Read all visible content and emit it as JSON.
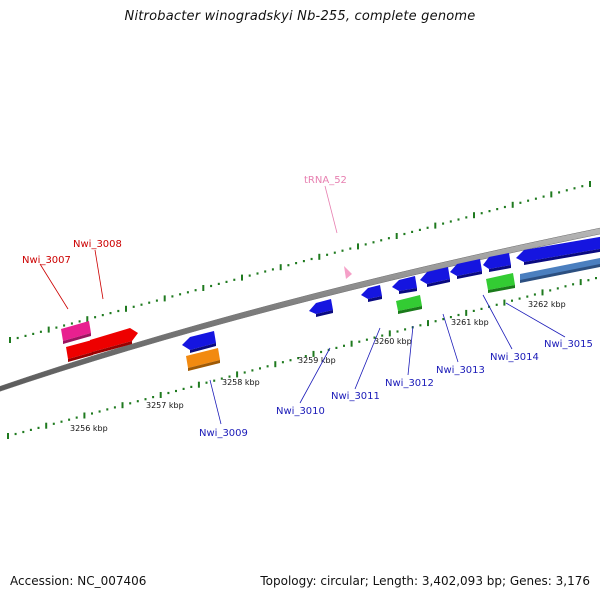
{
  "title": "Nitrobacter winogradskyi Nb-255, complete genome",
  "footer": {
    "accession": "Accession: NC_007406",
    "summary": "Topology: circular; Length: 3,402,093 bp; Genes: 3,176"
  },
  "colors": {
    "backbone": "#8c8c8c",
    "tick": "#1f7a1f",
    "red_gene": "#ee0000",
    "pink_gene": "#e8208f",
    "blue_gene": "#1515e0",
    "orange_gene": "#f28a10",
    "green_gene": "#33cc33",
    "steel_gene": "#4b7fbf",
    "trna": "#f5a0c8",
    "label_red": "#cc0000",
    "label_blue": "#1a1ab8",
    "label_trna": "#e77fb0"
  },
  "scale_labels": [
    "3256 kbp",
    "3257 kbp",
    "3258 kbp",
    "3259 kbp",
    "3260 kbp",
    "3261 kbp",
    "3262 kbp"
  ],
  "genes": [
    {
      "name": "Nwi_3007",
      "color": "pink"
    },
    {
      "name": "Nwi_3008",
      "color": "red"
    },
    {
      "name": "tRNA_52",
      "color": "trna"
    },
    {
      "name": "Nwi_3009",
      "color": "blue"
    },
    {
      "name": "Nwi_3010",
      "color": "blue"
    },
    {
      "name": "Nwi_3011",
      "color": "blue"
    },
    {
      "name": "Nwi_3012",
      "color": "blue"
    },
    {
      "name": "Nwi_3013",
      "color": "blue"
    },
    {
      "name": "Nwi_3014",
      "color": "blue"
    },
    {
      "name": "Nwi_3015",
      "color": "blue"
    }
  ]
}
